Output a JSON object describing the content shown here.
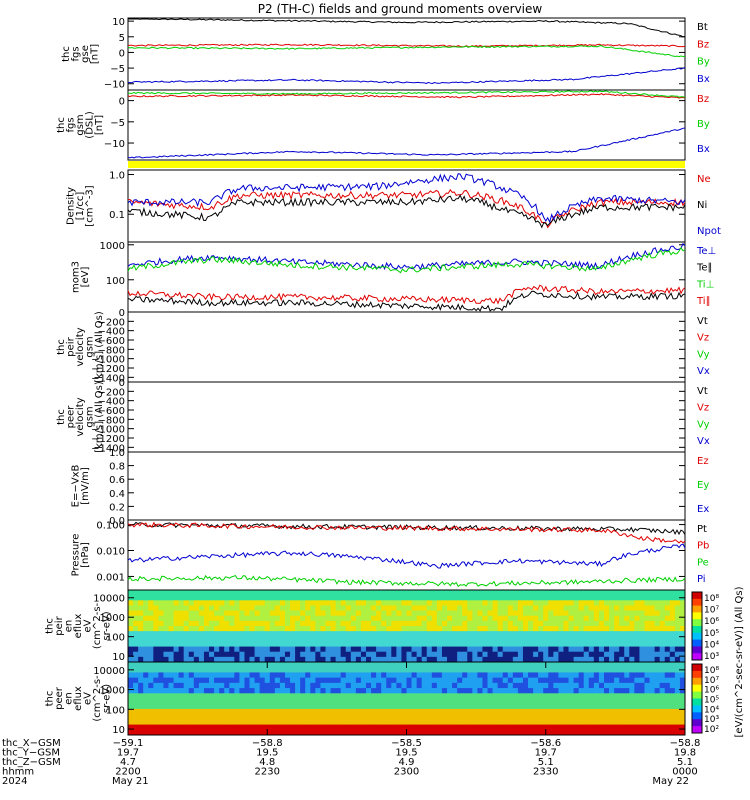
{
  "title": "P2 (TH-C) fields and ground moments overview",
  "colors": {
    "black": "#000000",
    "red": "#e00000",
    "green": "#00d000",
    "blue": "#0000d0",
    "yellow": "#ffff00"
  },
  "chart_data": [
    {
      "id": "fgs-gse",
      "type": "line",
      "ylabel": [
        "thc",
        "fgs",
        "gse",
        "[nT]"
      ],
      "ylim": [
        -12,
        11
      ],
      "scale": "linear",
      "ticks": [
        "10",
        "5",
        "0",
        "−5",
        "−10"
      ],
      "tick_values": [
        10,
        5,
        0,
        -5,
        -10
      ],
      "legend": [
        "Bt",
        "Bz",
        "By",
        "Bx"
      ],
      "series": [
        {
          "name": "Bt",
          "color": "#000000",
          "points": [
            [
              0,
              10.8
            ],
            [
              0.25,
              10.2
            ],
            [
              0.5,
              9.6
            ],
            [
              0.75,
              10.0
            ],
            [
              0.9,
              9.2
            ],
            [
              1,
              5.0
            ]
          ]
        },
        {
          "name": "Bz",
          "color": "#e00000",
          "points": [
            [
              0,
              2.2
            ],
            [
              0.3,
              2.5
            ],
            [
              0.6,
              2.0
            ],
            [
              0.85,
              2.4
            ],
            [
              1,
              2.0
            ]
          ]
        },
        {
          "name": "By",
          "color": "#00d000",
          "points": [
            [
              0,
              1.5
            ],
            [
              0.3,
              1.2
            ],
            [
              0.6,
              1.8
            ],
            [
              0.85,
              2.0
            ],
            [
              1,
              -1.5
            ]
          ]
        },
        {
          "name": "Bx",
          "color": "#0000d0",
          "points": [
            [
              0,
              -9.5
            ],
            [
              0.3,
              -8.8
            ],
            [
              0.55,
              -9.8
            ],
            [
              0.8,
              -8.6
            ],
            [
              1,
              -5.0
            ]
          ]
        }
      ]
    },
    {
      "id": "fgs-gsm",
      "type": "line",
      "ylabel": [
        "thc",
        "fgs",
        "gsm",
        "(DSL)",
        "[nT]"
      ],
      "ylim": [
        -14,
        2.5
      ],
      "scale": "linear",
      "ticks": [
        "0",
        "−5",
        "−10"
      ],
      "tick_values": [
        0,
        -5,
        -10
      ],
      "legend": [
        "Bz",
        "By",
        "Bx"
      ],
      "series": [
        {
          "name": "Bz",
          "color": "#e00000",
          "points": [
            [
              0,
              1.0
            ],
            [
              0.3,
              1.3
            ],
            [
              0.6,
              0.8
            ],
            [
              0.85,
              1.5
            ],
            [
              1,
              0.6
            ]
          ]
        },
        {
          "name": "By",
          "color": "#00d000",
          "points": [
            [
              0,
              1.8
            ],
            [
              0.3,
              1.6
            ],
            [
              0.6,
              1.9
            ],
            [
              0.85,
              2.2
            ],
            [
              1,
              0.8
            ]
          ]
        },
        {
          "name": "Bx",
          "color": "#0000d0",
          "points": [
            [
              0,
              -13.5
            ],
            [
              0.3,
              -12.0
            ],
            [
              0.55,
              -12.8
            ],
            [
              0.8,
              -12.0
            ],
            [
              1,
              -6.5
            ]
          ]
        }
      ]
    },
    {
      "id": "density",
      "type": "line",
      "ylabel": [
        "Density",
        "[1/cc]",
        "[cm^-3]"
      ],
      "ylim": [
        0.02,
        1.3
      ],
      "scale": "log",
      "ticks": [
        "1.0",
        "0.1"
      ],
      "tick_values": [
        1.0,
        0.1
      ],
      "legend": [
        "Ne",
        "Ni",
        "Npot"
      ],
      "series": [
        {
          "name": "Ne",
          "color": "#e00000",
          "points": [
            [
              0,
              0.2
            ],
            [
              0.15,
              0.15
            ],
            [
              0.2,
              0.3
            ],
            [
              0.5,
              0.3
            ],
            [
              0.6,
              0.35
            ],
            [
              0.68,
              0.2
            ],
            [
              0.75,
              0.05
            ],
            [
              0.85,
              0.2
            ],
            [
              1,
              0.2
            ]
          ]
        },
        {
          "name": "Ni",
          "color": "#000000",
          "points": [
            [
              0,
              0.12
            ],
            [
              0.15,
              0.08
            ],
            [
              0.2,
              0.2
            ],
            [
              0.5,
              0.2
            ],
            [
              0.6,
              0.25
            ],
            [
              0.68,
              0.12
            ],
            [
              0.75,
              0.05
            ],
            [
              0.85,
              0.15
            ],
            [
              1,
              0.15
            ]
          ]
        },
        {
          "name": "Npot",
          "color": "#0000d0",
          "points": [
            [
              0,
              0.2
            ],
            [
              0.15,
              0.2
            ],
            [
              0.2,
              0.45
            ],
            [
              0.45,
              0.5
            ],
            [
              0.6,
              0.9
            ],
            [
              0.68,
              0.4
            ],
            [
              0.75,
              0.06
            ],
            [
              0.85,
              0.25
            ],
            [
              1,
              0.2
            ]
          ]
        }
      ]
    },
    {
      "id": "temperature",
      "type": "line",
      "ylabel": [
        "mom3",
        "[eV]"
      ],
      "ylim": [
        12,
        1200
      ],
      "scale": "log",
      "ticks": [
        "1000",
        "100"
      ],
      "tick_values": [
        1000,
        100
      ],
      "legend": [
        "Te⊥",
        "Te∥",
        "Ti⊥",
        "Ti∥"
      ],
      "series": [
        {
          "name": "Te⊥",
          "color": "#0000d0",
          "points": [
            [
              0,
              260
            ],
            [
              0.15,
              450
            ],
            [
              0.3,
              320
            ],
            [
              0.5,
              230
            ],
            [
              0.7,
              330
            ],
            [
              0.85,
              250
            ],
            [
              1,
              900
            ]
          ]
        },
        {
          "name": "Ti⊥",
          "color": "#00d000",
          "points": [
            [
              0,
              200
            ],
            [
              0.15,
              380
            ],
            [
              0.3,
              260
            ],
            [
              0.5,
              190
            ],
            [
              0.7,
              280
            ],
            [
              0.85,
              200
            ],
            [
              1,
              700
            ]
          ]
        },
        {
          "name": "Ti∥",
          "color": "#e00000",
          "points": [
            [
              0,
              42
            ],
            [
              0.15,
              32
            ],
            [
              0.3,
              32
            ],
            [
              0.5,
              28
            ],
            [
              0.67,
              25
            ],
            [
              0.72,
              60
            ],
            [
              0.85,
              45
            ],
            [
              1,
              50
            ]
          ]
        },
        {
          "name": "Te∥",
          "color": "#000000",
          "points": [
            [
              0,
              28
            ],
            [
              0.15,
              22
            ],
            [
              0.3,
              22
            ],
            [
              0.5,
              18
            ],
            [
              0.67,
              15
            ],
            [
              0.72,
              40
            ],
            [
              0.85,
              32
            ],
            [
              1,
              35
            ]
          ]
        }
      ]
    },
    {
      "id": "peir-velocity",
      "type": "line",
      "ylabel": [
        "thc",
        "peir",
        "velocity",
        "gsm",
        "[km/s] (All Qs)"
      ],
      "ylim": [
        -1500,
        0
      ],
      "scale": "linear",
      "ticks": [
        "0",
        "−200",
        "−400",
        "−600",
        "−800",
        "−1000",
        "−1200",
        "−1400"
      ],
      "tick_values": [
        0,
        -200,
        -400,
        -600,
        -800,
        -1000,
        -1200,
        -1400
      ],
      "legend": [
        "Vt",
        "Vz",
        "Vy",
        "Vx"
      ],
      "series": []
    },
    {
      "id": "peer-velocity",
      "type": "line",
      "ylabel": [
        "thc",
        "peer",
        "velocity",
        "gsm",
        "[km/s] (All Qs)"
      ],
      "ylim": [
        -1500,
        0
      ],
      "scale": "linear",
      "ticks": [
        "0",
        "−200",
        "−400",
        "−600",
        "−800",
        "−1000",
        "−1200",
        "−1400"
      ],
      "tick_values": [
        0,
        -200,
        -400,
        -600,
        -800,
        -1000,
        -1200,
        -1400
      ],
      "legend": [
        "Vt",
        "Vz",
        "Vy",
        "Vx"
      ],
      "series": []
    },
    {
      "id": "efield",
      "type": "line",
      "ylabel": [
        "E=−VxB",
        "[mV/m]"
      ],
      "ylim": [
        0,
        1.0
      ],
      "scale": "linear",
      "ticks": [
        "1.0",
        "0.8",
        "0.6",
        "0.4",
        "0.2",
        "0.0"
      ],
      "tick_values": [
        1.0,
        0.8,
        0.6,
        0.4,
        0.2,
        0.0
      ],
      "legend": [
        "Ez",
        "Ey",
        "Ex"
      ],
      "series": []
    },
    {
      "id": "pressure",
      "type": "line",
      "ylabel": [
        "Pressure",
        "[nPa]"
      ],
      "ylim": [
        0.0003,
        0.15
      ],
      "scale": "log",
      "ticks": [
        "0.100",
        "0.010",
        "0.001"
      ],
      "tick_values": [
        0.1,
        0.01,
        0.001
      ],
      "legend": [
        "Pt",
        "Pb",
        "Pe",
        "Pi"
      ],
      "series": [
        {
          "name": "Pt",
          "color": "#000000",
          "points": [
            [
              0,
              0.1
            ],
            [
              0.3,
              0.085
            ],
            [
              0.6,
              0.075
            ],
            [
              0.9,
              0.065
            ],
            [
              1,
              0.05
            ]
          ]
        },
        {
          "name": "Pb",
          "color": "#e00000",
          "points": [
            [
              0,
              0.1
            ],
            [
              0.3,
              0.08
            ],
            [
              0.6,
              0.07
            ],
            [
              0.85,
              0.06
            ],
            [
              0.92,
              0.03
            ],
            [
              1,
              0.02
            ]
          ]
        },
        {
          "name": "Pi",
          "color": "#0000d0",
          "points": [
            [
              0,
              0.004
            ],
            [
              0.15,
              0.006
            ],
            [
              0.3,
              0.008
            ],
            [
              0.55,
              0.0025
            ],
            [
              0.7,
              0.004
            ],
            [
              0.85,
              0.003
            ],
            [
              1,
              0.015
            ]
          ]
        },
        {
          "name": "Pe",
          "color": "#00d000",
          "points": [
            [
              0,
              0.0008
            ],
            [
              0.2,
              0.0009
            ],
            [
              0.4,
              0.0006
            ],
            [
              0.6,
              0.0005
            ],
            [
              0.8,
              0.0006
            ],
            [
              1,
              0.0008
            ]
          ]
        }
      ]
    },
    {
      "id": "peir-spectrogram",
      "type": "heatmap",
      "ylabel": [
        "thc",
        "peir",
        "en",
        "eflux",
        "eV",
        "(cm^2-s-",
        "sr-eV)"
      ],
      "ylim": [
        5,
        25000
      ],
      "scale": "log",
      "ticks": [
        "10000",
        "1000",
        "100",
        "10"
      ],
      "tick_values": [
        10000,
        1000,
        100,
        10
      ]
    },
    {
      "id": "peer-spectrogram",
      "type": "heatmap",
      "ylabel": [
        "thc",
        "peer",
        "en",
        "eflux",
        "eV",
        "(cm^2-s-",
        "sr-eV)"
      ],
      "ylim": [
        5,
        25000
      ],
      "scale": "log",
      "ticks": [
        "10000",
        "1000",
        "100",
        "10"
      ],
      "tick_values": [
        10000,
        1000,
        100,
        10
      ]
    }
  ],
  "colorbar": {
    "label": "[eV/(cm^2-sec-sr-eV)] (All Qs)",
    "upper_ticks": [
      "10⁸",
      "10⁷",
      "10⁶",
      "10⁵",
      "10⁴",
      "10³"
    ],
    "lower_ticks": [
      "10⁸",
      "10⁷",
      "10⁶",
      "10⁵",
      "10⁴",
      "10³",
      "10²"
    ]
  },
  "xaxis": {
    "rows": [
      {
        "label": "thc_X−GSM",
        "values": [
          "−59.1",
          "−58.8",
          "−58.5",
          "−58.6",
          "−58.8"
        ]
      },
      {
        "label": "thc_Y−GSM",
        "values": [
          "19.7",
          "19.5",
          "19.5",
          "19.7",
          "19.8"
        ]
      },
      {
        "label": "thc_Z−GSM",
        "values": [
          "4.7",
          "4.8",
          "4.9",
          "5.1",
          "5.1"
        ]
      },
      {
        "label": "hhmm",
        "values": [
          "2200",
          "2230",
          "2300",
          "2330",
          "0000"
        ]
      },
      {
        "label": "2024",
        "values": [
          "May 21",
          "",
          "",
          "",
          "May 22"
        ]
      }
    ]
  }
}
